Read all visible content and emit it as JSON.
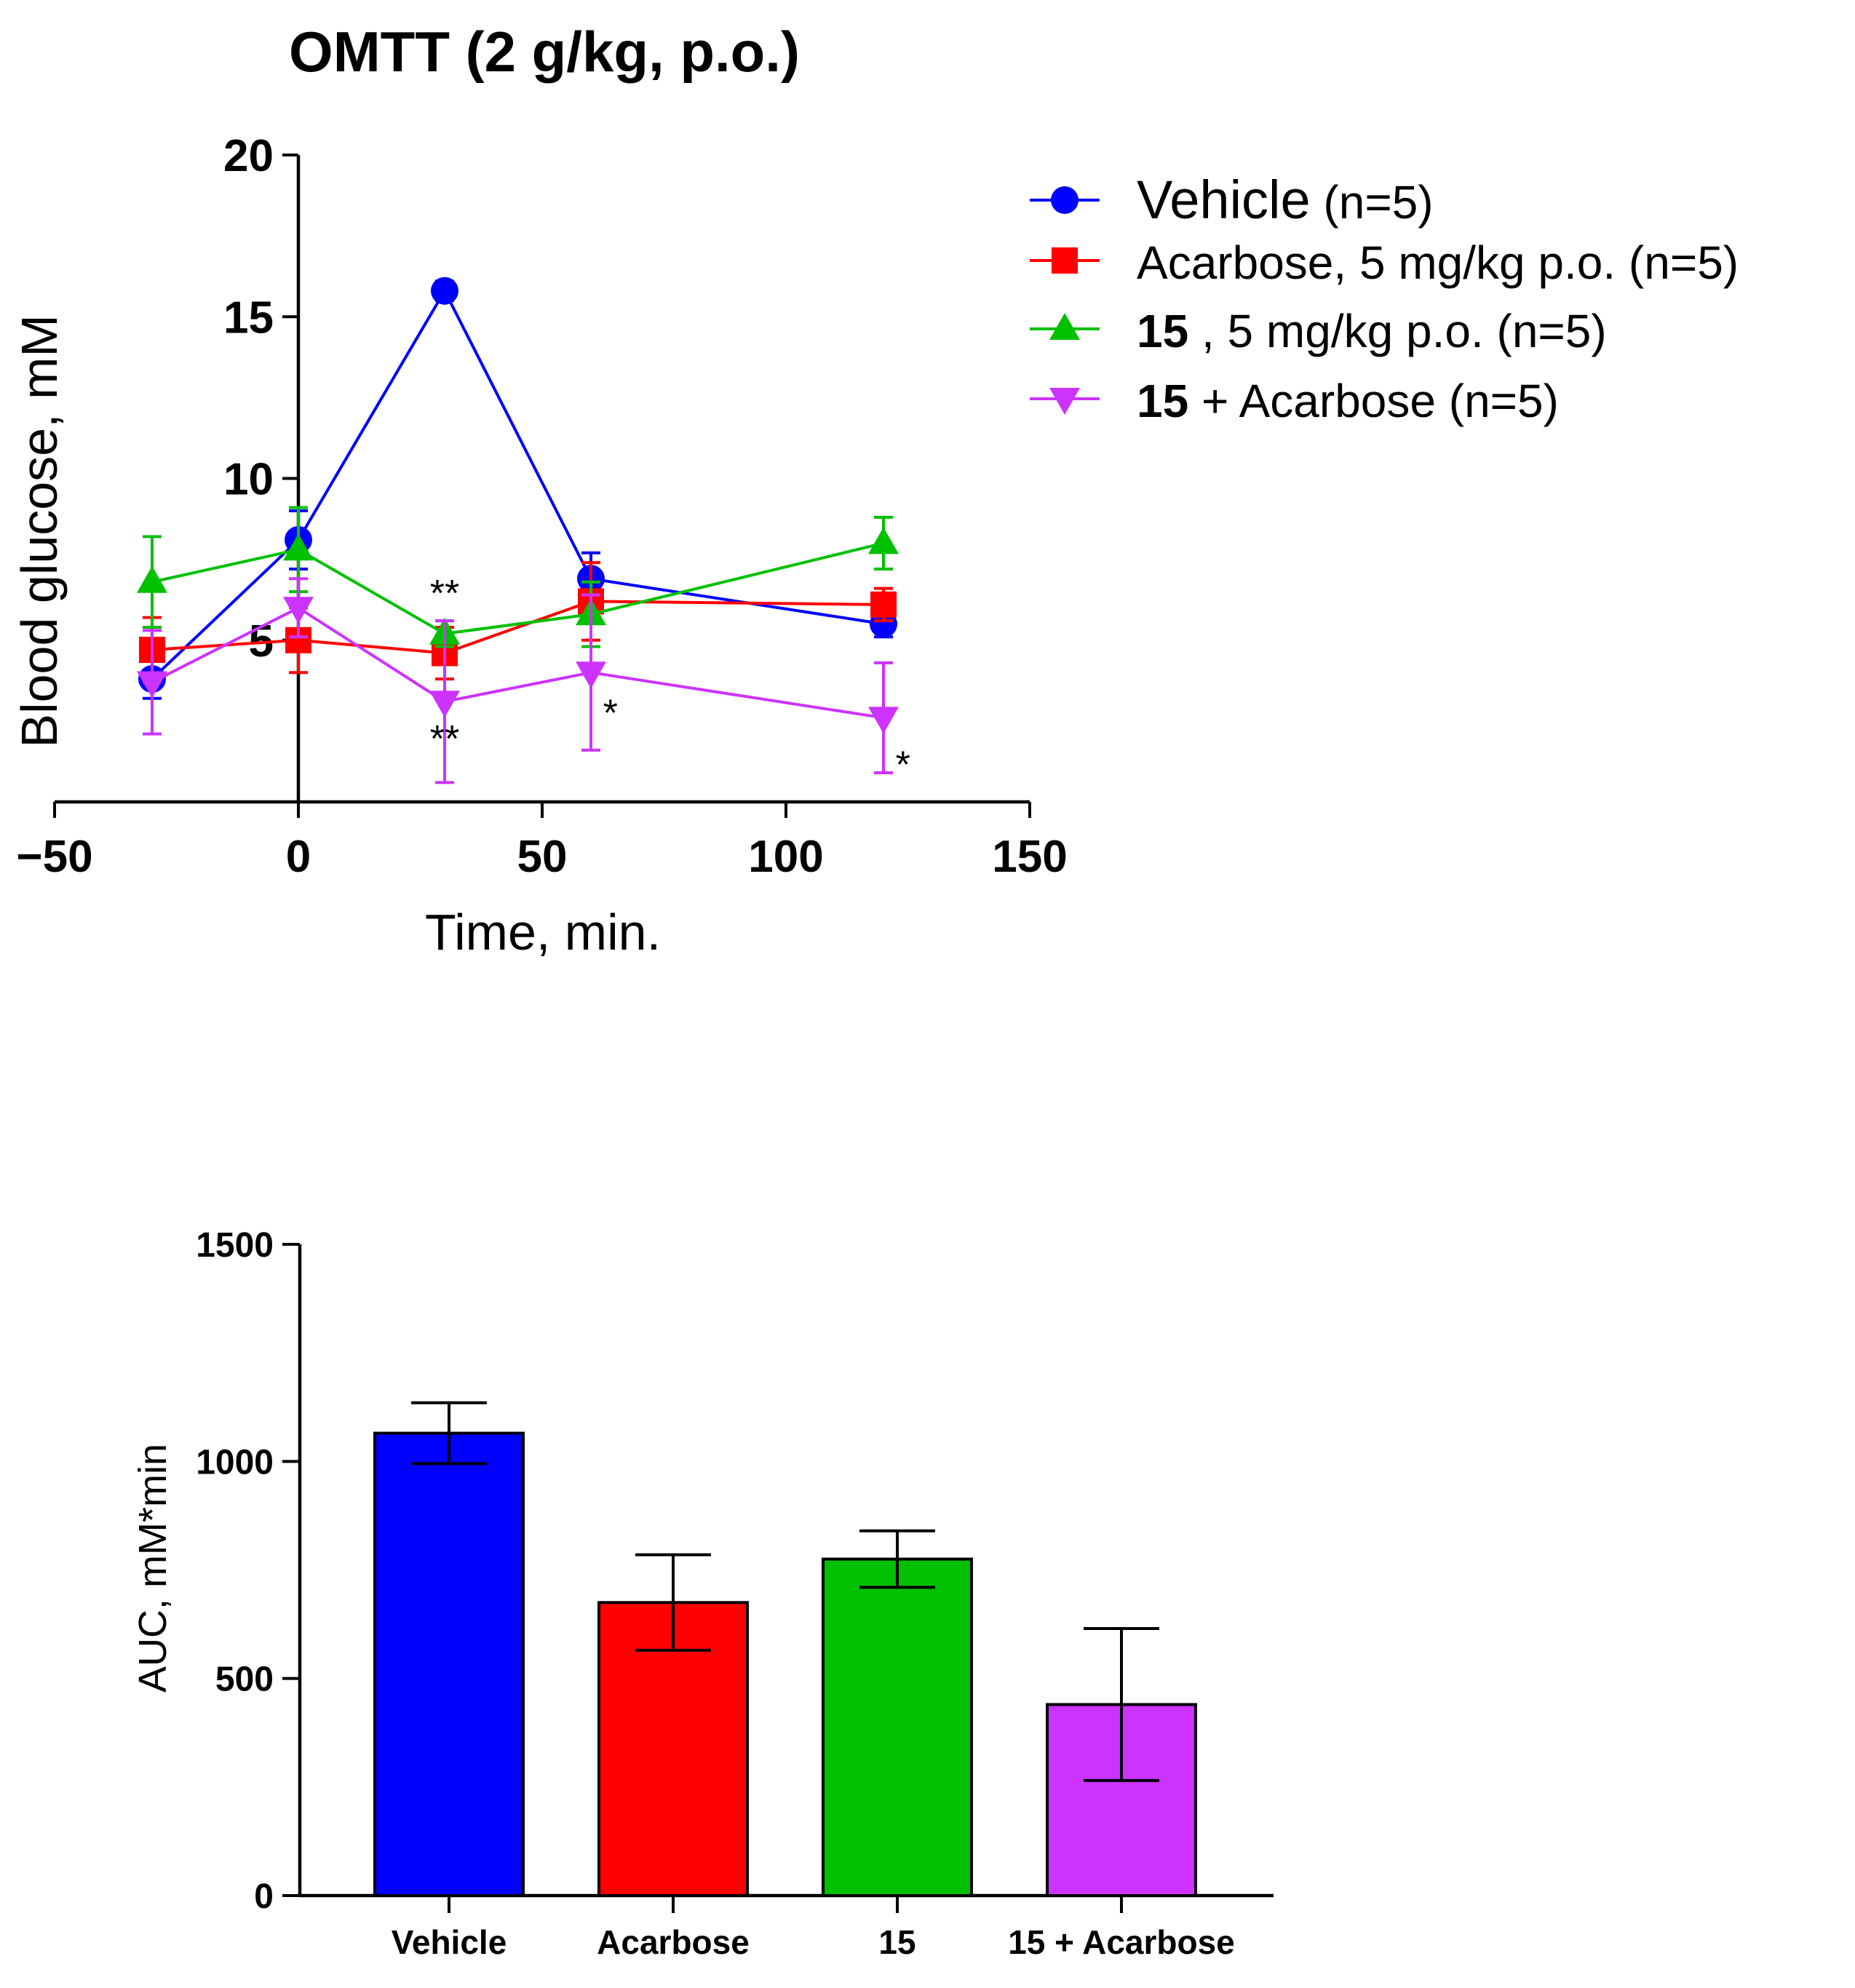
{
  "chart_data": [
    {
      "type": "line",
      "title": "OMTT (2 g/kg, p.o.)",
      "xlabel": "Time, min.",
      "ylabel": "Blood glucose, mM",
      "xlim": [
        -50,
        150
      ],
      "ylim": [
        0,
        20
      ],
      "xticks": [
        -50,
        0,
        50,
        100,
        150
      ],
      "yticks": [
        5,
        10,
        15,
        20
      ],
      "xtick_labels": [
        "−50",
        "0",
        "50",
        "100",
        "150"
      ],
      "ytick_labels": [
        "5",
        "10",
        "15",
        "20"
      ],
      "grid": false,
      "legend_position": "top-right",
      "series": [
        {
          "name": "Vehicle",
          "legend_bold": "",
          "legend_main": "Vehicle",
          "legend_rest": " (n=5)",
          "color": "#0000ff",
          "marker": "circle",
          "x": [
            -30,
            0,
            30,
            60,
            120
          ],
          "y": [
            3.8,
            8.1,
            15.8,
            6.9,
            5.5
          ],
          "err": [
            0.6,
            0.9,
            0.3,
            0.8,
            0.4
          ]
        },
        {
          "name": "Acarbose, 5 mg/kg p.o. (n=5)",
          "legend_bold": "",
          "legend_main": "Acarbose, 5 mg/kg p.o. (n=5)",
          "legend_rest": "",
          "color": "#ff0000",
          "marker": "square",
          "x": [
            -30,
            0,
            30,
            60,
            120
          ],
          "y": [
            4.7,
            5.0,
            4.6,
            6.2,
            6.1
          ],
          "err": [
            1.0,
            1.0,
            0.8,
            1.2,
            0.5
          ]
        },
        {
          "name": "15 , 5 mg/kg p.o. (n=5)",
          "legend_bold": "15",
          "legend_main": " , 5 mg/kg p.o. (n=5)",
          "legend_rest": "",
          "color": "#00c000",
          "marker": "triangle-up",
          "x": [
            -30,
            0,
            30,
            60,
            120
          ],
          "y": [
            6.8,
            7.8,
            5.2,
            5.8,
            8.0
          ],
          "err": [
            1.4,
            1.3,
            0.4,
            1.0,
            0.8
          ]
        },
        {
          "name": "15 + Acarbose (n=5)",
          "legend_bold": "15",
          "legend_main": " + Acarbose (n=5)",
          "legend_rest": "",
          "color": "#cc33ff",
          "marker": "triangle-down",
          "x": [
            -30,
            0,
            30,
            60,
            120
          ],
          "y": [
            3.7,
            6.0,
            3.1,
            4.0,
            2.6
          ],
          "err": [
            1.6,
            0.9,
            2.5,
            2.4,
            1.7
          ]
        }
      ],
      "annotations": [
        {
          "text": "**",
          "x": 30,
          "y": 6.5
        },
        {
          "text": "**",
          "x": 30,
          "y": 2.0
        },
        {
          "text": "*",
          "x": 64,
          "y": 2.8
        },
        {
          "text": "*",
          "x": 124,
          "y": 1.2
        }
      ]
    },
    {
      "type": "bar",
      "title": "",
      "xlabel": "",
      "ylabel": "AUC, mM*min",
      "ylim": [
        0,
        1500
      ],
      "yticks": [
        0,
        500,
        1000,
        1500
      ],
      "ytick_labels": [
        "0",
        "500",
        "1000",
        "1500"
      ],
      "categories": [
        "Vehicle",
        "Acarbose",
        "15",
        "15 + Acarbose"
      ],
      "values": [
        1065,
        675,
        775,
        440
      ],
      "err": [
        70,
        110,
        65,
        175
      ],
      "colors": [
        "#0000ff",
        "#ff0000",
        "#00c000",
        "#cc33ff"
      ],
      "grid": false
    }
  ]
}
